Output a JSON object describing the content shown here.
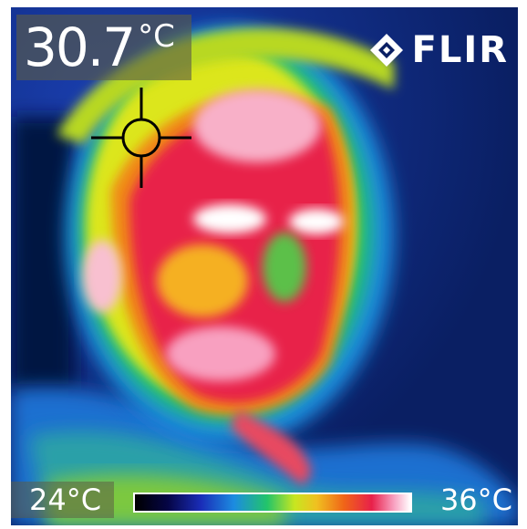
{
  "camera": {
    "spot_value": "30.7",
    "spot_unit": "°C",
    "brand": "FLIR",
    "brand_icon": "diamond-logo-icon",
    "crosshair_icon": "spot-meter-crosshair-icon"
  },
  "scale": {
    "min_label": "24°C",
    "max_label": "36°C",
    "palette": "iron-rainbow",
    "colors": [
      "#000000",
      "#050546",
      "#1a2db8",
      "#1c8ce0",
      "#22c46a",
      "#c8e620",
      "#f0c020",
      "#f06418",
      "#e8204a",
      "#f8a0c0",
      "#ffffff"
    ]
  }
}
